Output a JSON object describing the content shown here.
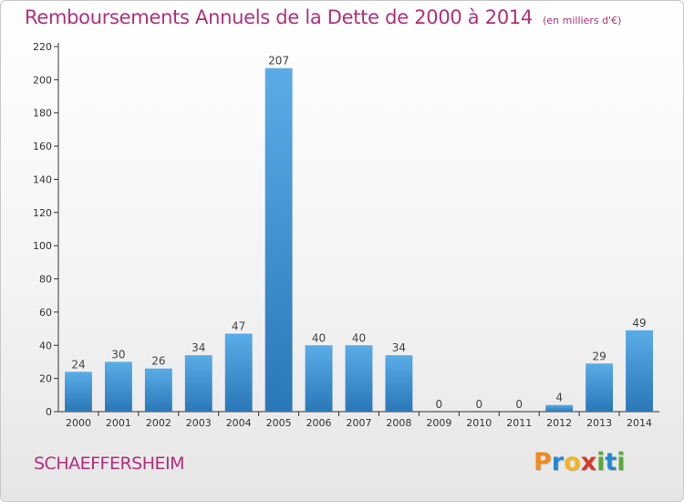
{
  "chart_data": {
    "type": "bar",
    "title": "Remboursements Annuels de la Dette de 2000 à 2014",
    "subtitle": "(en milliers d'€)",
    "categories": [
      "2000",
      "2001",
      "2002",
      "2003",
      "2004",
      "2005",
      "2006",
      "2007",
      "2008",
      "2009",
      "2010",
      "2011",
      "2012",
      "2013",
      "2014"
    ],
    "values": [
      24,
      30,
      26,
      34,
      47,
      207,
      40,
      40,
      34,
      0,
      0,
      0,
      4,
      29,
      49
    ],
    "data_labels": [
      "24",
      "30",
      "26",
      "34",
      "47",
      "207",
      "40",
      "40",
      "34",
      "0",
      "0",
      "0",
      "4",
      "29",
      "49"
    ],
    "ylim": [
      0,
      220
    ],
    "yticks": [
      "0",
      "20",
      "40",
      "60",
      "80",
      "100",
      "120",
      "140",
      "160",
      "180",
      "200",
      "220"
    ],
    "ytick_values": [
      0,
      20,
      40,
      60,
      80,
      100,
      120,
      140,
      160,
      180,
      200,
      220
    ],
    "grid": false,
    "colors": {
      "bar_light": "#5aace6",
      "bar_dark": "#2a77b8",
      "title": "#b0307a",
      "axis": "#333333"
    }
  },
  "commune": "SCHAEFFERSHEIM",
  "logo": {
    "text": "Proxiti",
    "letters": [
      "P",
      "r",
      "o",
      "x",
      "i",
      "t",
      "i"
    ],
    "colors": [
      "#f08a1e",
      "#1e8ad6",
      "#f2b51e",
      "#d63a2a",
      "#5aa83a",
      "#1e8ad6",
      "#5aa83a"
    ]
  }
}
